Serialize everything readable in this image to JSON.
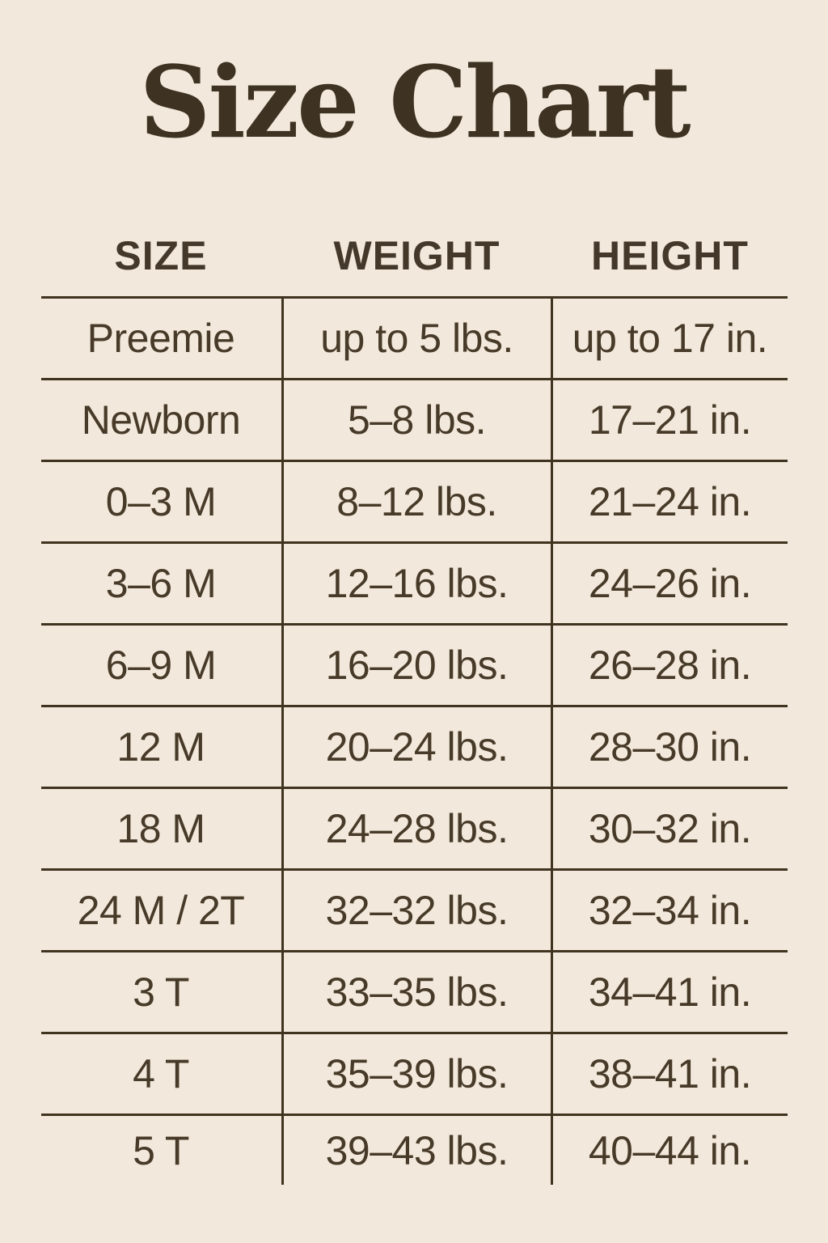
{
  "page": {
    "title": "Size Chart",
    "background_color": "#f2e9dc",
    "ink_color": "#483a28",
    "line_color": "#40331f"
  },
  "chart_data": {
    "type": "table",
    "title": "Size Chart",
    "columns": [
      "SIZE",
      "WEIGHT",
      "HEIGHT"
    ],
    "rows": [
      [
        "Preemie",
        "up to 5 lbs.",
        "up to 17 in."
      ],
      [
        "Newborn",
        "5–8 lbs.",
        "17–21 in."
      ],
      [
        "0–3 M",
        "8–12 lbs.",
        "21–24 in."
      ],
      [
        "3–6 M",
        "12–16 lbs.",
        "24–26 in."
      ],
      [
        "6–9 M",
        "16–20 lbs.",
        "26–28 in."
      ],
      [
        "12 M",
        "20–24 lbs.",
        "28–30 in."
      ],
      [
        "18 M",
        "24–28 lbs.",
        "30–32 in."
      ],
      [
        "24 M / 2T",
        "32–32 lbs.",
        "32–34 in."
      ],
      [
        "3 T",
        "33–35 lbs.",
        "34–41 in."
      ],
      [
        "4 T",
        "35–39 lbs.",
        "38–41 in."
      ],
      [
        "5 T",
        "39–43 lbs.",
        "40–44 in."
      ]
    ]
  }
}
